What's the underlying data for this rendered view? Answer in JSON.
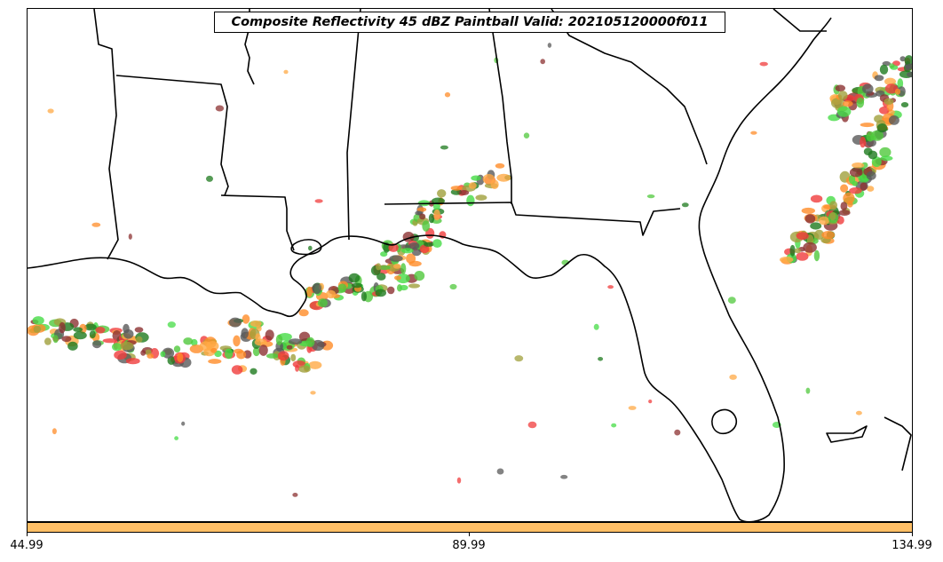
{
  "title": "Composite Reflectivity 45 dBZ Paintball Valid: 202105120000f011",
  "colorbar": {
    "color": "#ffbf66",
    "ticks": [
      "44.99",
      "89.99",
      "134.99"
    ]
  },
  "map": {
    "background": "#ffffff",
    "line_color": "#000000",
    "paintball_colors": [
      "#f03c3c",
      "#ff8c28",
      "#50c83c",
      "#1e7a1e",
      "#a0a03c",
      "#8c3232",
      "#5a5a5a",
      "#ffaa46",
      "#46dc46"
    ]
  }
}
